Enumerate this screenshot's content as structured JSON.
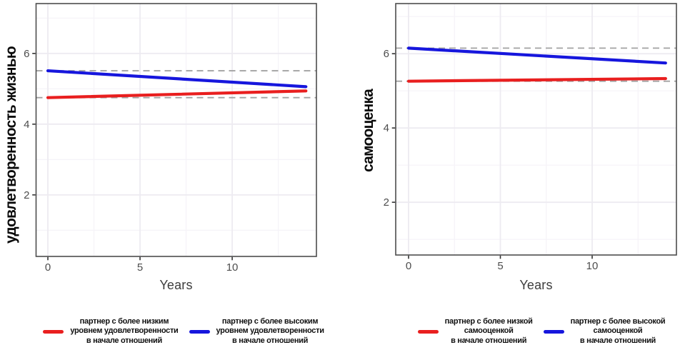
{
  "chart_data": [
    {
      "type": "line",
      "title": "",
      "xlabel": "Years",
      "ylabel": "удовлетворенность жизнью",
      "x": [
        0,
        14
      ],
      "x_ticks": [
        0,
        5,
        10
      ],
      "y_ticks": [
        2,
        4,
        6
      ],
      "x_minor_ticks": [
        2.5,
        7.5,
        12.5
      ],
      "y_minor_ticks": [
        1,
        3,
        5,
        7
      ],
      "xlim": [
        -0.64,
        14.57
      ],
      "ylim": [
        0.26,
        7.41
      ],
      "grid": true,
      "legend_position": "bottom",
      "series": [
        {
          "key": "higher",
          "name": "партнер с более высоким уровнем удовлетворенности в начале отношений",
          "color": "#1616dd",
          "values": [
            5.51,
            5.06
          ]
        },
        {
          "key": "lower",
          "name": "партнер с более низким уровнем удовлетворенности в начале отношений",
          "color": "#e91f1f",
          "values": [
            4.75,
            4.94
          ]
        }
      ],
      "ref_lines": {
        "style": "dashed",
        "color": "#a2a2a2",
        "values": [
          5.51,
          4.75
        ]
      },
      "legend": [
        {
          "color": "#e91f1f",
          "label": "партнер с более низким\nуровнем удовлетворенности\nв начале отношений"
        },
        {
          "color": "#1616dd",
          "label": "партнер с более высоким\nуровнем удовлетворенности\nв начале отношений"
        }
      ]
    },
    {
      "type": "line",
      "title": "",
      "xlabel": "Years",
      "ylabel": "самооценка",
      "x": [
        0,
        14
      ],
      "x_ticks": [
        0,
        5,
        10
      ],
      "y_ticks": [
        2,
        4,
        6
      ],
      "x_minor_ticks": [
        2.5,
        7.5,
        12.5
      ],
      "y_minor_ticks": [
        1,
        3,
        5,
        7
      ],
      "xlim": [
        -0.7,
        14.59
      ],
      "ylim": [
        0.58,
        7.35
      ],
      "grid": true,
      "legend_position": "bottom",
      "series": [
        {
          "key": "higher",
          "name": "партнер с более высокой самооценкой в начале отношений",
          "color": "#1616dd",
          "values": [
            6.15,
            5.75
          ]
        },
        {
          "key": "lower",
          "name": "партнер с более низкой самооценкой в начале отношений",
          "color": "#e91f1f",
          "values": [
            5.26,
            5.33
          ]
        }
      ],
      "ref_lines": {
        "style": "dashed",
        "color": "#a2a2a2",
        "values": [
          6.15,
          5.26
        ]
      },
      "legend": [
        {
          "color": "#e91f1f",
          "label": "партнер с более низкой\nсамооценкой\nв начале отношений"
        },
        {
          "color": "#1616dd",
          "label": "партнер с более высокой\nсамооценкой\nв начале отношений"
        }
      ]
    }
  ]
}
